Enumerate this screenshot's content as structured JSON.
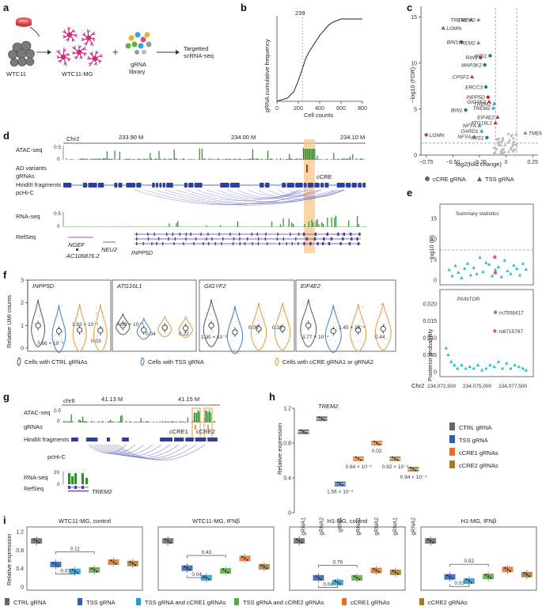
{
  "panels": {
    "a": {
      "letter": "a",
      "cells_label": "WTC11",
      "mg_label": "WTC11-MG",
      "plus": "+",
      "library": [
        "gRNA",
        "library"
      ],
      "result": [
        "Targetted",
        "scRNA-seq"
      ],
      "dish_label": "iPSC"
    },
    "b": {
      "letter": "b",
      "annotation": "239",
      "ylabel": "gRNA cumulative frequency",
      "xlabel": "Cell counts",
      "xticks": [
        "0",
        "200",
        "400",
        "600",
        "800"
      ]
    },
    "c": {
      "letter": "c",
      "ylabel": "−log10 (FDR)",
      "xlabel": "log2(fold change)",
      "xticks": [
        "−0.75",
        "−0.50",
        "−0.25",
        "0",
        "0.25"
      ],
      "yticks": [
        "0",
        "5",
        "10",
        "15"
      ],
      "legend": [
        "cCRE gRNA",
        "TSS gRNA"
      ]
    },
    "d": {
      "letter": "d",
      "chrom": "Chr2",
      "coords": [
        "233.90 M",
        "234.00 M",
        "234.10 M"
      ],
      "tracks": [
        "ATAC-seq",
        "AD variants",
        "gRNAs",
        "HindIII fragments",
        "pcHi-C",
        "RNA-seq",
        "RefSeq"
      ],
      "atac_max": "0.5",
      "atac_min": "0",
      "rna_max": "0.5",
      "rna_min": "0",
      "ccre": "cCRE",
      "genes": [
        "NGEF",
        "NEU2",
        "AC106876.2",
        "INPP5D"
      ]
    },
    "e": {
      "letter": "e",
      "top_title": "Summary statistics",
      "top_ylabel": "−log10 (P)",
      "top_yticks": [
        "0",
        "5",
        "10",
        "15"
      ],
      "bottom_title": "PAINTOR",
      "bottom_ylabel": "Posterior probability",
      "bottom_yticks": [
        "0",
        "0.005",
        "0.010",
        "0.015",
        "0.020"
      ],
      "snp1": "rs7558417",
      "snp2": "rs6715767",
      "chrom": "Chr2",
      "xticks": [
        "234,072,500",
        "234,075,000",
        "234,077,500"
      ]
    },
    "f": {
      "letter": "f",
      "ylabel": "Relative UMI counts",
      "yticks": [
        "0",
        "1",
        "2",
        "3"
      ],
      "groups": [
        {
          "gene": "INPP5D",
          "p1": "7.66 × 10⁻³",
          "p2": "1.83 × 10⁻³",
          "p3": "0.03"
        },
        {
          "gene": "ATG16L1",
          "p1": "",
          "p2": "4.39 × 10⁻⁴",
          "p3": "0.04",
          "p4": "0.22"
        },
        {
          "gene": "GIGYF2",
          "p1": "1.30 × 10⁻⁶",
          "p2": "0.05",
          "p3": "0.19"
        },
        {
          "gene": "EIF4E2",
          "p1": "3.77 × 10⁻⁴",
          "p2": "1.45 × 10⁻⁴",
          "p3": "0.44"
        }
      ],
      "legend": [
        "Cells with CTRL gRNAs",
        "Cells with TSS gRNA",
        "Cells with cCRE gRNA1 or gRNA2"
      ]
    },
    "g": {
      "letter": "g",
      "chrom": "chr6",
      "coords": [
        "41.13 M",
        "41.15 M"
      ],
      "tracks": [
        "ATAC-seq",
        "gRNAs",
        "HindIII fragments",
        "pcHi-C",
        "RNA-seq",
        "RefSeq"
      ],
      "atac_max": "0.5",
      "atac_min": "0",
      "rna_max": "20",
      "rna_min": "0",
      "ccre1": "cCRE1",
      "ccre2": "cCRE2",
      "gene": "TREM2"
    },
    "h": {
      "letter": "h",
      "title": "TREM2",
      "ylabel": "Relative expression",
      "yticks": [
        "0",
        "0.4",
        "0.8",
        "1.2"
      ],
      "categories": [
        "gRNA1",
        "gRNA2",
        "gRNA",
        "gRNA1",
        "gRNA2",
        "gRNA1",
        "gRNA2"
      ],
      "pvals": [
        "1.56 × 10⁻⁵",
        "0.64 × 10⁻³",
        "0.02",
        "0.92 × 10⁻³",
        "0.94 × 10⁻⁴"
      ],
      "legend": [
        "CTRL gRNA",
        "TSS gRNA",
        "cCRE1 gRNAs",
        "cCRE2 gRNAs"
      ]
    },
    "i": {
      "letter": "i",
      "ylabel": "Relative expression",
      "yticks": [
        "0",
        "0.4",
        "0.8",
        "1.2"
      ],
      "subplots": [
        {
          "title": "WTC11-MG, control",
          "p_top": "0.11",
          "p_mid": "0.03"
        },
        {
          "title": "WTC11-MG, IFNβ",
          "p_top": "0.43",
          "p_mid": "0.04"
        },
        {
          "title": "H1-MG, control",
          "p_top": "0.76",
          "p_mid": "0.04"
        },
        {
          "title": "H1-MG, IFNβ",
          "p_top": "0.52",
          "p_mid": "0.03"
        }
      ],
      "legend": [
        "CTRL gRNA",
        "TSS gRNA",
        "TSS gRNA and cCRE1 gRNAs",
        "TSS gRNA and cCRE2 gRNAs",
        "cCRE1 gRNAs",
        "cCRE2 gRNAs"
      ]
    }
  },
  "colors": {
    "ctrl": "#666666",
    "tss": "#2f5fad",
    "tss_c1": "#1f9ad6",
    "tss_c2": "#5aa83c",
    "ccre1": "#e0712c",
    "ccre2": "#a7792e",
    "atac": "#2e8b2e",
    "hind": "#2b3f9e",
    "loop": "#6b6fc4",
    "highlight": "#f5c88a",
    "violin_ctrl": "#555555",
    "violin_tss": "#3f7fc4",
    "violin_ccre": "#e89a3c",
    "teal": "#2bbfbf",
    "pink": "#e0557a",
    "c_blue": "#4a90c8",
    "c_brown": "#a0522d",
    "c_teal": "#1f7f7f",
    "c_red": "#b8322e",
    "c_green": "#6aa84f",
    "c_purple": "#7a3b9e"
  },
  "chart_data": [
    {
      "type": "line",
      "panel": "b",
      "x": [
        0,
        100,
        160,
        200,
        239,
        270,
        300,
        330,
        360,
        400,
        440,
        480,
        520,
        560,
        600,
        650,
        700,
        800
      ],
      "y": [
        0,
        0.04,
        0.12,
        0.25,
        0.4,
        0.52,
        0.6,
        0.66,
        0.72,
        0.8,
        0.86,
        0.92,
        0.96,
        0.98,
        1.0,
        1.0,
        1.0,
        1.0
      ],
      "annotation": "239",
      "xlim": [
        0,
        800
      ],
      "ylim": [
        0,
        1
      ]
    },
    {
      "type": "scatter",
      "panel": "c",
      "xlim": [
        -0.8,
        0.3
      ],
      "ylim": [
        0,
        16
      ],
      "labeled": [
        {
          "label": "TREM2",
          "x": -0.33,
          "y": 14.7,
          "color": "#4a90c8",
          "shape": "tri"
        },
        {
          "label": "TREM2",
          "x": -0.26,
          "y": 14.7,
          "color": "#4a90c8",
          "shape": "tri"
        },
        {
          "label": "LGMN",
          "x": -0.59,
          "y": 13.8,
          "color": "#a0522d",
          "shape": "tri"
        },
        {
          "label": "BIN1",
          "x": -0.42,
          "y": 12.3,
          "color": "#1f7f7f",
          "shape": "circ"
        },
        {
          "label": "TREM2",
          "x": -0.26,
          "y": 12.2,
          "color": "#4a90c8",
          "shape": "tri"
        },
        {
          "label": "IWS1",
          "x": -0.15,
          "y": 10.8,
          "color": "#1f7f7f",
          "shape": "circ"
        },
        {
          "label": "RIN3",
          "x": -0.24,
          "y": 10.6,
          "color": "#b8322e",
          "shape": "circ"
        },
        {
          "label": "MAP3K2",
          "x": -0.2,
          "y": 9.8,
          "color": "#1f7f7f",
          "shape": "circ"
        },
        {
          "label": "CPSF2",
          "x": -0.32,
          "y": 8.5,
          "color": "#a0522d",
          "shape": "tri"
        },
        {
          "label": "ERCC3",
          "x": -0.19,
          "y": 7.4,
          "color": "#1f7f7f",
          "shape": "circ"
        },
        {
          "label": "INPP5D",
          "x": -0.17,
          "y": 6.3,
          "color": "#b8322e",
          "shape": "circ"
        },
        {
          "label": "GIGYF2",
          "x": -0.16,
          "y": 5.8,
          "color": "#b8322e",
          "shape": "tri"
        },
        {
          "label": "TREM2",
          "x": -0.11,
          "y": 5.6,
          "color": "#4a90c8",
          "shape": "tri"
        },
        {
          "label": "TREM2",
          "x": -0.12,
          "y": 5.1,
          "color": "#4a90c8",
          "shape": "tri"
        },
        {
          "label": "BIN1",
          "x": -0.38,
          "y": 4.9,
          "color": "#1f7f7f",
          "shape": "circ"
        },
        {
          "label": "EIF4E2",
          "x": -0.08,
          "y": 4.1,
          "color": "#b8322e",
          "shape": "tri"
        },
        {
          "label": "ATG16L1",
          "x": -0.1,
          "y": 3.5,
          "color": "#b8322e",
          "shape": "tri"
        },
        {
          "label": "NFYA",
          "x": -0.25,
          "y": 3.2,
          "color": "#4a90c8",
          "shape": "tri"
        },
        {
          "label": "OARD1",
          "x": -0.23,
          "y": 2.6,
          "color": "#4a90c8",
          "shape": "tri"
        },
        {
          "label": "LGMN",
          "x": -0.75,
          "y": 2.2,
          "color": "#a0522d",
          "shape": "circ"
        },
        {
          "label": "NFYA",
          "x": -0.3,
          "y": 2.0,
          "color": "#4a90c8",
          "shape": "tri"
        },
        {
          "label": "IWS1",
          "x": -0.18,
          "y": 1.9,
          "color": "#1f7f7f",
          "shape": "circ"
        },
        {
          "label": "TMEM126A",
          "x": 0.18,
          "y": 2.4,
          "color": "#6aa84f",
          "shape": "tri"
        }
      ]
    },
    {
      "type": "scatter",
      "panel": "e-top",
      "xlim": [
        234070000,
        234078500
      ],
      "ylim": [
        0,
        15
      ],
      "threshold": 7.3,
      "x": [
        234070600,
        234070900,
        234071200,
        234071500,
        234071800,
        234072100,
        234072400,
        234072700,
        234073000,
        234073300,
        234073600,
        234073900,
        234074200,
        234074500,
        234074800,
        234075100,
        234075400,
        234075700,
        234076000,
        234076300,
        234076600,
        234076900,
        234077200,
        234077500,
        234077800,
        234078100
      ],
      "y": [
        2.5,
        1.0,
        3.5,
        1.8,
        0.5,
        2.8,
        4.0,
        1.2,
        3.0,
        1.5,
        5.5,
        2.0,
        4.2,
        3.8,
        1.0,
        2.5,
        3.2,
        0.8,
        4.8,
        2.2,
        1.5,
        3.6,
        2.8,
        1.2,
        4.0,
        2.6
      ]
    },
    {
      "type": "scatter",
      "panel": "e-bottom",
      "xlim": [
        234070000,
        234078500
      ],
      "ylim": [
        0,
        0.02
      ],
      "x": [
        234070300,
        234070500,
        234070800,
        234071100,
        234071400,
        234071800,
        234072200,
        234072600,
        234073000,
        234073400,
        234073800,
        234074200,
        234074600,
        234075000,
        234075400,
        234075800,
        234076200,
        234076600,
        234077000,
        234077400,
        234077800,
        234078100
      ],
      "y": [
        0.007,
        0.005,
        0.003,
        0.002,
        0.001,
        0.002,
        0.001,
        0.0015,
        0.001,
        0.002,
        0.0005,
        0.001,
        0.002,
        0.0015,
        0.003,
        0.001,
        0.0025,
        0.001,
        0.002,
        0.0015,
        0.001,
        0.0005
      ],
      "highlights": [
        {
          "label": "rs7558417",
          "x": 234075100,
          "y": 0.0175
        },
        {
          "label": "rs6715767",
          "x": 234075050,
          "y": 0.012
        }
      ]
    },
    {
      "type": "box",
      "panel": "h",
      "categories": [
        "gRNA1",
        "gRNA2",
        "gRNA",
        "gRNA1",
        "gRNA2",
        "gRNA1",
        "gRNA2"
      ],
      "values": [
        0.93,
        1.08,
        0.33,
        0.62,
        0.8,
        0.62,
        0.5
      ],
      "groups": [
        "CTRL gRNA",
        "CTRL gRNA",
        "TSS gRNA",
        "cCRE1 gRNAs",
        "cCRE1 gRNAs",
        "cCRE2 gRNAs",
        "cCRE2 gRNAs"
      ],
      "ylim": [
        0,
        1.2
      ]
    },
    {
      "type": "box",
      "panel": "i",
      "series": [
        {
          "name": "WTC11-MG, control",
          "values": [
            1.0,
            0.49,
            0.34,
            0.37,
            0.54,
            0.51
          ]
        },
        {
          "name": "WTC11-MG, IFNβ",
          "values": [
            1.0,
            0.41,
            0.2,
            0.35,
            0.62,
            0.44
          ]
        },
        {
          "name": "H1-MG, control",
          "values": [
            1.0,
            0.2,
            0.1,
            0.2,
            0.36,
            0.32
          ]
        },
        {
          "name": "H1-MG, IFNβ",
          "values": [
            1.0,
            0.22,
            0.13,
            0.23,
            0.38,
            0.27
          ]
        }
      ],
      "categories": [
        "CTRL gRNA",
        "TSS gRNA",
        "TSS gRNA and cCRE1 gRNAs",
        "TSS gRNA and cCRE2 gRNAs",
        "cCRE1 gRNAs",
        "cCRE2 gRNAs"
      ],
      "ylim": [
        0,
        1.2
      ]
    }
  ]
}
